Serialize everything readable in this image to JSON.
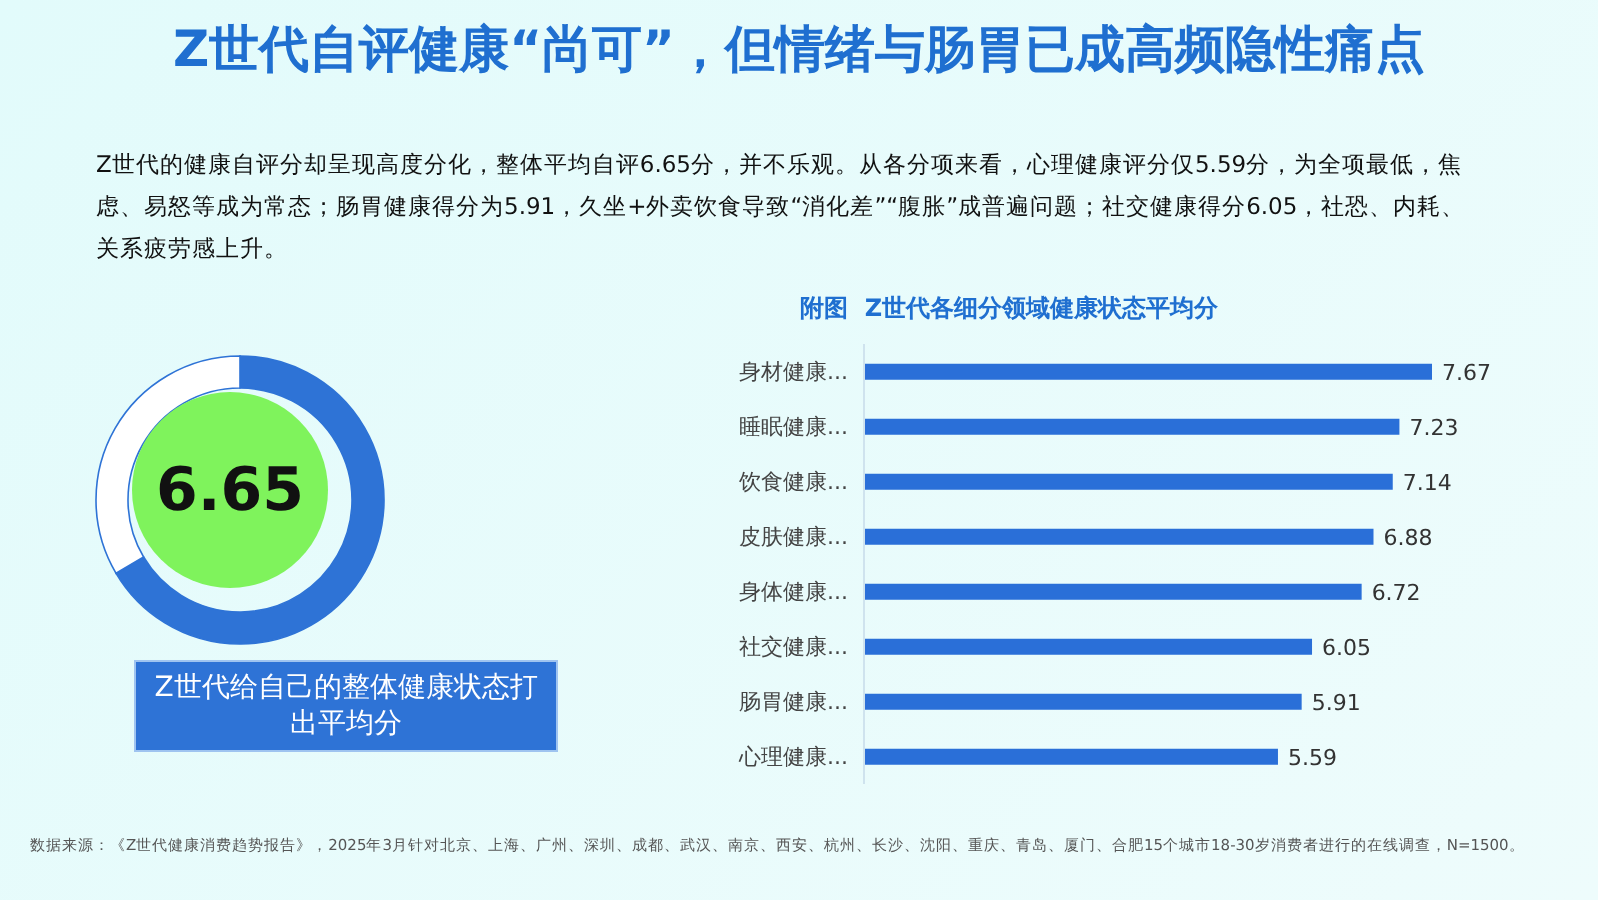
{
  "chart_data": [
    {
      "type": "donut",
      "title": "Z世代自评健康“尚可”，但情绪与肠胃已成高频隐性痛点",
      "subtitle": "Z世代的健康自评分却呈现高度分化，整体平均自评6.65分，并不乐观。从各分项来看，心理健康评分仅5.59分，为全项最低，焦虑、易怒等成为常态；肠胃健康得分为5.91，久坐+外卖饮食导致“消化差”“腹胀”成普遍问题；社交健康得分6.05，社恐、内耗、关系疲劳感上升。",
      "categories": [
        null,
        null
      ],
      "values": [
        66.5,
        33.5
      ],
      "colors": [
        "#2e73d6",
        "#ffffff"
      ],
      "annotations": [
        "6.65",
        "Z世代给自己的整体健康状态打出平均分"
      ]
    },
    {
      "type": "bar",
      "orientation": "horizontal",
      "title": "附图  Z世代各细分领域健康状态平均分",
      "categories": [
        "身材健康...",
        "睡眠健康...",
        "饮食健康...",
        "皮肤健康...",
        "身体健康...",
        "社交健康...",
        "肠胃健康...",
        "心理健康..."
      ],
      "values": [
        7.67,
        7.23,
        7.14,
        6.88,
        6.72,
        6.05,
        5.91,
        5.59
      ],
      "color": "#2a6fd8",
      "data_labels": true,
      "annotations": [
        "数据来源：《Z世代健康消费趋势报告》，2025年3月针对北京、上海、广州、深圳、成都、武汉、南京、西安、杭州、长沙、沈阳、重庆、青岛、厦门、合肥15个城市18-30岁消费者进行的在线调查，N=1500。"
      ]
    }
  ]
}
